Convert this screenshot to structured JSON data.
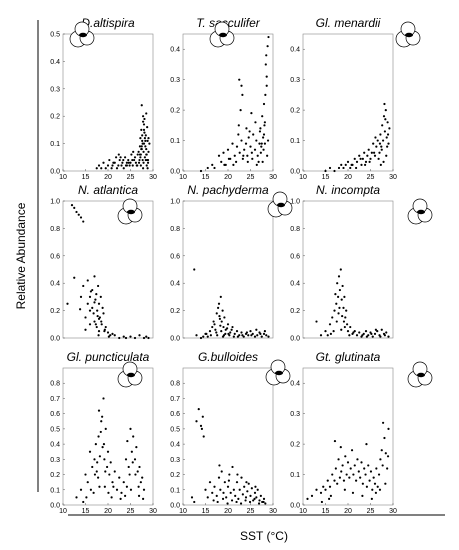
{
  "figure": {
    "ylabel": "Relative Abundance",
    "xlabel": "SST (°C)"
  },
  "chart_data": [
    {
      "type": "scatter",
      "title": "D.altispira",
      "xlim": [
        10,
        30
      ],
      "ylim": [
        0,
        0.5
      ],
      "xticks": [
        10,
        15,
        20,
        25,
        30
      ],
      "yticks": [
        0,
        0.1,
        0.2,
        0.3,
        0.4,
        0.5
      ],
      "icon": "foraminifera-shell-icon",
      "x": [
        17.5,
        18,
        18.5,
        19,
        19.5,
        20,
        20.3,
        20.8,
        21,
        21.5,
        21.8,
        22,
        22.3,
        22.6,
        23,
        23.2,
        23.5,
        23.8,
        24,
        24.2,
        24.5,
        24.8,
        25,
        25.2,
        25.5,
        25.8,
        26,
        26.2,
        26.5,
        26.8,
        27,
        27.1,
        27.2,
        27.3,
        27.4,
        27.5,
        27.6,
        27.7,
        27.8,
        27.9,
        28,
        28.1,
        28.2,
        28.3,
        28.4,
        28.5,
        28.6,
        28.7,
        28.8,
        28.9,
        29,
        29.2,
        27.5,
        27.8,
        28,
        28.2,
        28.5,
        28.7,
        27.3,
        27.9,
        28.4,
        28.8,
        27.2,
        27.6,
        28.1,
        28.6,
        27.4,
        27.8,
        28.3,
        28.9,
        26.9,
        27.1,
        27.5,
        28,
        28.5,
        29,
        22.4,
        23.4,
        24.6,
        25.6,
        26.4,
        21.2,
        22.8,
        24.2,
        25.4,
        26.6,
        27.7
      ],
      "y": [
        0.01,
        0.02,
        0.01,
        0.03,
        0.01,
        0.02,
        0.04,
        0.01,
        0.02,
        0.03,
        0.05,
        0.01,
        0.02,
        0.04,
        0.02,
        0.03,
        0.01,
        0.05,
        0.02,
        0.03,
        0.04,
        0.02,
        0.03,
        0.06,
        0.02,
        0.04,
        0.05,
        0.03,
        0.02,
        0.07,
        0.04,
        0.09,
        0.12,
        0.06,
        0.15,
        0.08,
        0.11,
        0.04,
        0.18,
        0.07,
        0.1,
        0.14,
        0.05,
        0.09,
        0.13,
        0.08,
        0.06,
        0.16,
        0.11,
        0.03,
        0.07,
        0.1,
        0.24,
        0.2,
        0.17,
        0.12,
        0.06,
        0.04,
        0.02,
        0.03,
        0.04,
        0.01,
        0.05,
        0.13,
        0.19,
        0.02,
        0.08,
        0.01,
        0.11,
        0.04,
        0.03,
        0.06,
        0.09,
        0.15,
        0.21,
        0.12,
        0.06,
        0.04,
        0.03,
        0.07,
        0.02,
        0.03,
        0.05,
        0.02,
        0.04,
        0.06,
        0.1
      ]
    },
    {
      "type": "scatter",
      "title": "T. sacculifer",
      "xlim": [
        10,
        30
      ],
      "ylim": [
        0,
        0.45
      ],
      "xticks": [
        10,
        15,
        20,
        25,
        30
      ],
      "yticks": [
        0,
        0.1,
        0.2,
        0.3,
        0.4
      ],
      "icon": "foraminifera-shell-icon",
      "x": [
        14,
        15.5,
        16.5,
        17,
        18,
        18.5,
        19,
        19.5,
        20,
        20.5,
        21,
        21.5,
        22,
        22.3,
        22.6,
        23,
        23.3,
        23.6,
        24,
        24.3,
        24.6,
        25,
        25.3,
        25.6,
        26,
        26.3,
        26.6,
        27,
        27.2,
        27.4,
        27.6,
        27.8,
        28,
        28.2,
        28.4,
        28.6,
        28.8,
        29,
        22.5,
        23,
        23.2,
        22.8,
        24.8,
        25.2,
        27.5,
        28,
        28.3,
        28.6,
        27.9,
        28.1,
        28.5,
        21.8,
        22.4,
        23.4,
        24.4,
        25.4,
        26.4,
        27.3,
        27.7,
        28.2,
        28.7,
        20.2,
        21.2,
        26.8,
        27.1,
        28.9,
        19.2,
        24.1,
        26.1
      ],
      "y": [
        0,
        0.01,
        0.02,
        0.01,
        0.05,
        0.03,
        0.06,
        0.02,
        0.07,
        0.04,
        0.09,
        0.05,
        0.08,
        0.12,
        0.06,
        0.1,
        0.04,
        0.07,
        0.09,
        0.05,
        0.11,
        0.08,
        0.06,
        0.12,
        0.07,
        0.1,
        0.05,
        0.09,
        0.14,
        0.08,
        0.18,
        0.11,
        0.22,
        0.16,
        0.35,
        0.28,
        0.41,
        0.44,
        0.3,
        0.28,
        0.25,
        0.2,
        0.13,
        0.19,
        0.09,
        0.12,
        0.25,
        0.31,
        0.07,
        0.15,
        0.38,
        0.03,
        0.15,
        0.05,
        0.03,
        0.04,
        0.02,
        0.06,
        0.03,
        0.09,
        0.05,
        0.04,
        0.02,
        0.03,
        0.13,
        0.1,
        0.02,
        0.14,
        0.16
      ]
    },
    {
      "type": "scatter",
      "title": "Gl. menardii",
      "xlim": [
        10,
        30
      ],
      "ylim": [
        0,
        0.45
      ],
      "xticks": [
        10,
        15,
        20,
        25,
        30
      ],
      "yticks": [
        0,
        0.1,
        0.2,
        0.3,
        0.4
      ],
      "icon": "foraminifera-shell-icon",
      "x": [
        15,
        16,
        17,
        18,
        18.5,
        19,
        19.5,
        20,
        20.5,
        21,
        21.5,
        22,
        22.5,
        23,
        23.3,
        23.6,
        24,
        24.3,
        24.6,
        25,
        25.3,
        25.6,
        26,
        26.3,
        26.6,
        27,
        27.2,
        27.4,
        27.6,
        27.8,
        28,
        28.2,
        28.4,
        28.6,
        28.8,
        29,
        29.2,
        27.5,
        28.1,
        28.5,
        28.9,
        27.1,
        26.8,
        25.8,
        24.8,
        23.8,
        22.8,
        21.8,
        20.8,
        28.3,
        27.9,
        28.7,
        26.1,
        27.3
      ],
      "y": [
        0,
        0.01,
        0,
        0.01,
        0.02,
        0.01,
        0.02,
        0.03,
        0.01,
        0.02,
        0.04,
        0.03,
        0.05,
        0.02,
        0.04,
        0.06,
        0.03,
        0.05,
        0.07,
        0.04,
        0.06,
        0.09,
        0.05,
        0.08,
        0.1,
        0.06,
        0.12,
        0.08,
        0.15,
        0.1,
        0.18,
        0.13,
        0.2,
        0.11,
        0.16,
        0.09,
        0.14,
        0.07,
        0.22,
        0.05,
        0.12,
        0.09,
        0.04,
        0.06,
        0.03,
        0.02,
        0.04,
        0.01,
        0.02,
        0.17,
        0.03,
        0.08,
        0.11,
        0.02
      ]
    },
    {
      "type": "scatter",
      "title": "N. atlantica",
      "xlim": [
        10,
        30
      ],
      "ylim": [
        0,
        1.0
      ],
      "xticks": [],
      "yticks": [
        0,
        0.2,
        0.4,
        0.6,
        0.8,
        1.0
      ],
      "icon": "foraminifera-shell-icon",
      "x": [
        12.5,
        13,
        13.5,
        14,
        14.5,
        12,
        11,
        12.5,
        14.5,
        15.5,
        16,
        16.5,
        17,
        17.2,
        17.4,
        17.6,
        17.8,
        18,
        18.2,
        18.4,
        18.6,
        18.8,
        19,
        19.2,
        19.5,
        20,
        20.5,
        21,
        15,
        16,
        16.5,
        17,
        17.5,
        18,
        15.5,
        16.8,
        17.3,
        17.9,
        18.5,
        19.3,
        20.2,
        21.5,
        22.5,
        23.5,
        24,
        25,
        26,
        27,
        28,
        28.5,
        29,
        14,
        15,
        16,
        17,
        18,
        13.8,
        16.2,
        17.7
      ],
      "y": [
        0.95,
        0.92,
        0.9,
        0.88,
        0.85,
        0.97,
        0.25,
        0.44,
        0.38,
        0.42,
        0.3,
        0.35,
        0.45,
        0.28,
        0.32,
        0.2,
        0.38,
        0.25,
        0.15,
        0.3,
        0.1,
        0.22,
        0.18,
        0.05,
        0.08,
        0.04,
        0.02,
        0.03,
        0.15,
        0.2,
        0.22,
        0.12,
        0.08,
        0.05,
        0.25,
        0.18,
        0.1,
        0.02,
        0.12,
        0.06,
        0.01,
        0.02,
        0,
        0.01,
        0,
        0.01,
        0,
        0.02,
        0,
        0.01,
        0,
        0.3,
        0.06,
        0.1,
        0.26,
        0.14,
        0.21,
        0.34,
        0.16
      ]
    },
    {
      "type": "scatter",
      "title": "N. pachyderma",
      "xlim": [
        10,
        30
      ],
      "ylim": [
        0,
        1.0
      ],
      "xticks": [],
      "yticks": [
        0,
        0.2,
        0.4,
        0.6,
        0.8,
        1.0
      ],
      "icon": "foraminifera-shell-icon",
      "x": [
        12.5,
        15,
        16,
        16.5,
        17,
        17.5,
        17.8,
        18,
        18.2,
        18.4,
        18.6,
        18.8,
        19,
        19.2,
        19.5,
        20,
        20.5,
        21,
        21.5,
        22,
        22.5,
        23,
        23.5,
        24,
        24.5,
        25,
        25.5,
        26,
        26.5,
        27,
        27.5,
        28,
        28.5,
        29,
        14,
        15.5,
        16.8,
        17.2,
        17.6,
        18.1,
        18.5,
        18.9,
        19.4,
        19.8,
        20.3,
        20.8,
        21.3,
        23.2,
        24.2,
        26.3,
        27.2,
        28.2,
        13,
        14.5,
        15.2,
        16.2,
        17.4,
        18.3,
        19.1,
        20.1,
        22.2,
        25.2
      ],
      "y": [
        0.5,
        0.03,
        0.05,
        0.08,
        0.1,
        0.18,
        0.22,
        0.25,
        0.14,
        0.3,
        0.12,
        0.2,
        0.08,
        0.15,
        0.06,
        0.1,
        0.04,
        0.08,
        0.03,
        0.05,
        0.02,
        0.04,
        0.01,
        0.03,
        0.02,
        0.05,
        0.03,
        0.01,
        0.02,
        0.04,
        0.01,
        0.03,
        0.02,
        0.01,
        0,
        0.01,
        0.12,
        0.06,
        0.02,
        0.16,
        0.05,
        0.01,
        0.03,
        0.07,
        0.02,
        0.06,
        0.01,
        0.02,
        0.04,
        0.06,
        0.03,
        0.05,
        0.02,
        0.01,
        0.03,
        0.02,
        0.04,
        0.09,
        0.02,
        0.03,
        0.01,
        0.02
      ]
    },
    {
      "type": "scatter",
      "title": "N. incompta",
      "xlim": [
        10,
        30
      ],
      "ylim": [
        0,
        1.0
      ],
      "xticks": [],
      "yticks": [
        0,
        0.2,
        0.4,
        0.6,
        0.8,
        1.0
      ],
      "icon": "foraminifera-shell-icon",
      "x": [
        13,
        14,
        15,
        16,
        16.5,
        17,
        17.2,
        17.4,
        17.6,
        17.8,
        18,
        18.2,
        18.4,
        18.6,
        18.8,
        19,
        19.2,
        19.4,
        19.6,
        19.8,
        20,
        20.5,
        21,
        21.5,
        22,
        22.5,
        23,
        23.5,
        24,
        24.5,
        25,
        25.5,
        26,
        26.5,
        27,
        27.5,
        28,
        28.5,
        29,
        16.8,
        17.5,
        18.1,
        18.7,
        19.3,
        17.9,
        18.5,
        19.1,
        20.3,
        21.2,
        23.2,
        25.2,
        27.2,
        15.5,
        16.2,
        24.2,
        26.2,
        28.2
      ],
      "y": [
        0.12,
        0.02,
        0.05,
        0.1,
        0.15,
        0.2,
        0.32,
        0.25,
        0.4,
        0.3,
        0.45,
        0.35,
        0.5,
        0.28,
        0.38,
        0.22,
        0.3,
        0.15,
        0.2,
        0.1,
        0.05,
        0.08,
        0.03,
        0.05,
        0.02,
        0.04,
        0.01,
        0.03,
        0.05,
        0.02,
        0.04,
        0.01,
        0.03,
        0.05,
        0.02,
        0.06,
        0.03,
        0.04,
        0.01,
        0.05,
        0.12,
        0.22,
        0.16,
        0.08,
        0.18,
        0.06,
        0.12,
        0.02,
        0.04,
        0.02,
        0.03,
        0.01,
        0.02,
        0.03,
        0.01,
        0.06,
        0.02
      ]
    },
    {
      "type": "scatter",
      "title": "Gl. puncticulata",
      "xlim": [
        10,
        30
      ],
      "ylim": [
        0,
        0.9
      ],
      "xticks": [
        10,
        15,
        20,
        25,
        30
      ],
      "yticks": [
        0,
        0.1,
        0.2,
        0.3,
        0.4,
        0.5,
        0.6,
        0.7,
        0.8
      ],
      "icon": "foraminifera-shell-icon",
      "x": [
        13,
        14,
        15,
        15.5,
        16,
        16.5,
        17,
        17.3,
        17.6,
        17.9,
        18.2,
        18.5,
        18.8,
        19,
        19.2,
        19.5,
        19.8,
        20,
        20.3,
        20.6,
        21,
        21.5,
        22,
        22.5,
        23,
        23.5,
        24,
        24.3,
        24.6,
        25,
        25.3,
        25.6,
        26,
        26.3,
        26.6,
        27,
        27.3,
        27.6,
        28,
        18,
        18.4,
        18.7,
        19.1,
        19.4,
        17.8,
        18.1,
        16.8,
        17.1,
        20.8,
        21.2,
        24.8,
        25.1,
        25.5,
        26.8,
        14.5,
        15.2,
        16.2,
        17.5,
        19.3,
        20.1,
        22.8,
        23.8,
        24.2,
        26.1,
        26.9,
        27.8
      ],
      "y": [
        0.05,
        0.1,
        0.2,
        0.15,
        0.35,
        0.25,
        0.3,
        0.4,
        0.28,
        0.45,
        0.32,
        0.55,
        0.38,
        0.7,
        0.3,
        0.5,
        0.25,
        0.35,
        0.2,
        0.28,
        0.15,
        0.22,
        0.1,
        0.18,
        0.08,
        0.15,
        0.3,
        0.42,
        0.25,
        0.5,
        0.35,
        0.45,
        0.3,
        0.38,
        0.22,
        0.25,
        0.15,
        0.18,
        0.1,
        0.62,
        0.48,
        0.58,
        0.4,
        0.22,
        0.18,
        0.12,
        0.08,
        0.2,
        0.05,
        0.12,
        0.2,
        0.1,
        0.28,
        0.12,
        0.02,
        0.05,
        0.1,
        0.22,
        0.12,
        0.08,
        0.04,
        0.06,
        0.12,
        0.2,
        0.06,
        0.04
      ]
    },
    {
      "type": "scatter",
      "title": "G.bulloides",
      "xlim": [
        10,
        30
      ],
      "ylim": [
        0,
        0.9
      ],
      "xticks": [
        10,
        15,
        20,
        25,
        30
      ],
      "yticks": [
        0,
        0.1,
        0.2,
        0.3,
        0.4,
        0.5,
        0.6,
        0.7,
        0.8
      ],
      "icon": "foraminifera-shell-icon",
      "x": [
        13,
        13.5,
        14,
        14.2,
        14.4,
        14.6,
        12,
        12.5,
        15,
        15.5,
        16,
        16.5,
        17,
        17.5,
        18,
        18.3,
        18.6,
        19,
        19.3,
        19.6,
        20,
        20.3,
        20.6,
        21,
        21.3,
        21.6,
        22,
        22.3,
        22.6,
        23,
        23.3,
        23.6,
        24,
        24.3,
        24.6,
        25,
        25.3,
        25.6,
        26,
        26.3,
        26.6,
        27,
        27.3,
        27.6,
        28,
        28.3,
        16.8,
        17.7,
        18.9,
        19.9,
        20.9,
        21.9,
        22.9,
        23.9,
        24.9,
        25.9,
        26.9,
        27.9,
        18.1,
        20.2,
        22.1,
        24.1,
        26.1
      ],
      "y": [
        0.55,
        0.63,
        0.52,
        0.5,
        0.58,
        0.45,
        0.05,
        0.02,
        0.1,
        0.05,
        0.15,
        0.08,
        0.12,
        0.06,
        0.18,
        0.1,
        0.22,
        0.08,
        0.15,
        0.05,
        0.12,
        0.2,
        0.08,
        0.25,
        0.1,
        0.06,
        0.15,
        0.04,
        0.1,
        0.18,
        0.07,
        0.12,
        0.05,
        0.09,
        0.14,
        0.06,
        0.11,
        0.03,
        0.08,
        0.05,
        0.1,
        0.03,
        0.06,
        0.02,
        0.04,
        0.01,
        0.03,
        0.02,
        0.04,
        0.01,
        0.03,
        0.02,
        0.01,
        0.03,
        0.02,
        0.04,
        0.01,
        0.02,
        0.26,
        0.16,
        0.2,
        0.15,
        0.12
      ]
    },
    {
      "type": "scatter",
      "title": "Gt. glutinata",
      "xlim": [
        10,
        30
      ],
      "ylim": [
        0,
        0.45
      ],
      "xticks": [
        10,
        15,
        20,
        25,
        30
      ],
      "yticks": [
        0,
        0.1,
        0.2,
        0.3,
        0.4
      ],
      "icon": "foraminifera-shell-icon",
      "x": [
        11,
        12,
        13,
        14,
        14.5,
        15,
        15.5,
        16,
        16.5,
        17,
        17.3,
        17.6,
        17.9,
        18.2,
        18.5,
        18.8,
        19.1,
        19.4,
        19.7,
        20,
        20.3,
        20.6,
        20.9,
        21.2,
        21.5,
        21.8,
        22.1,
        22.4,
        22.7,
        23,
        23.3,
        23.6,
        23.9,
        24.2,
        24.5,
        24.8,
        25.1,
        25.4,
        25.7,
        26,
        26.3,
        26.6,
        26.9,
        27.2,
        27.5,
        27.8,
        28.1,
        28.4,
        28.7,
        29,
        16.2,
        17.1,
        18.4,
        19.3,
        21.1,
        23.2,
        25.3,
        27.1,
        27.7,
        28.3,
        28.9,
        14.2,
        15.8,
        24.1,
        26.2
      ],
      "y": [
        0.02,
        0.03,
        0.05,
        0.04,
        0.06,
        0.05,
        0.08,
        0.06,
        0.1,
        0.08,
        0.12,
        0.07,
        0.15,
        0.09,
        0.11,
        0.13,
        0.08,
        0.16,
        0.1,
        0.14,
        0.09,
        0.12,
        0.18,
        0.1,
        0.13,
        0.08,
        0.15,
        0.11,
        0.09,
        0.14,
        0.07,
        0.12,
        0.1,
        0.06,
        0.13,
        0.08,
        0.11,
        0.05,
        0.09,
        0.07,
        0.12,
        0.06,
        0.1,
        0.15,
        0.18,
        0.27,
        0.22,
        0.17,
        0.12,
        0.25,
        0.03,
        0.21,
        0.19,
        0.05,
        0.04,
        0.03,
        0.02,
        0.05,
        0.13,
        0.07,
        0.16,
        0.01,
        0.02,
        0.2,
        0.04
      ]
    }
  ]
}
